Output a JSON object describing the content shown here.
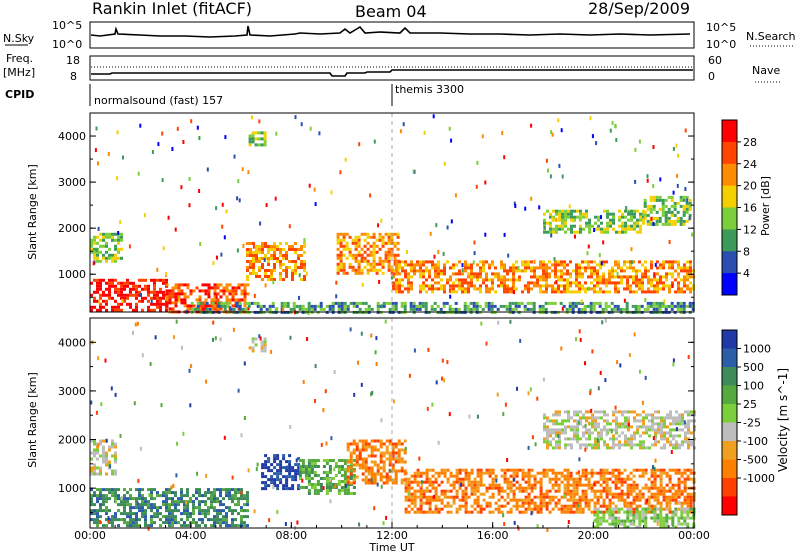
{
  "header": {
    "station": "Rankin Inlet (fitACF)",
    "beam": "Beam 04",
    "date": "28/Sep/2009"
  },
  "aux_panels": {
    "nsky_label": "N.Sky",
    "nsky_ticks": [
      "10^5",
      "10^0"
    ],
    "nsearch_label": "N.Search",
    "nsearch_ticks": [
      "10^5",
      "10^0"
    ],
    "freq_label": "Freq.",
    "freq_unit": "[MHz]",
    "freq_ticks": [
      "18",
      "8"
    ],
    "nave_label": "Nave",
    "nave_ticks": [
      "60",
      "0"
    ],
    "cpid_label": "CPID",
    "cpid_segments": [
      {
        "label": "normalsound (fast) 157",
        "start_hour": 0,
        "end_hour": 12
      },
      {
        "label": "themis 3300",
        "start_hour": 12,
        "end_hour": 24
      }
    ]
  },
  "chart_data": [
    {
      "type": "heatmap",
      "name": "power",
      "ylabel": "Slant Range [km]",
      "xlim": [
        0,
        24
      ],
      "ylim": [
        180,
        4500
      ],
      "yticks": [
        1000,
        2000,
        3000,
        4000
      ],
      "colorbar": {
        "label": "Power [dB]",
        "ticks": [
          "4",
          "8",
          "12",
          "16",
          "20",
          "24",
          "28"
        ],
        "colors": [
          "#0000ff",
          "#2a4fb0",
          "#3c9a5a",
          "#7ccf3a",
          "#f5d000",
          "#ff8c00",
          "#ff4500",
          "#ff0000"
        ]
      },
      "echo_regions": [
        {
          "t0": 0.0,
          "t1": 3.0,
          "r0": 200,
          "r1": 900,
          "level": 7
        },
        {
          "t0": 3.0,
          "t1": 6.3,
          "r0": 200,
          "r1": 800,
          "level": 6
        },
        {
          "t0": 0.0,
          "t1": 1.2,
          "r0": 1300,
          "r1": 1900,
          "level": 3
        },
        {
          "t0": 6.2,
          "t1": 8.5,
          "r0": 900,
          "r1": 1700,
          "level": 5
        },
        {
          "t0": 9.8,
          "t1": 12.2,
          "r0": 1000,
          "r1": 1900,
          "level": 5
        },
        {
          "t0": 12.0,
          "t1": 24.0,
          "r0": 600,
          "r1": 1300,
          "level": 5
        },
        {
          "t0": 18.0,
          "t1": 22.0,
          "r0": 1900,
          "r1": 2400,
          "level": 3
        },
        {
          "t0": 22.0,
          "t1": 23.8,
          "r0": 2100,
          "r1": 2700,
          "level": 3
        },
        {
          "t0": 6.3,
          "t1": 6.9,
          "r0": 3800,
          "r1": 4100,
          "level": 3
        },
        {
          "t0": 4.0,
          "t1": 24.0,
          "r0": 200,
          "r1": 400,
          "level": 2
        }
      ]
    },
    {
      "type": "heatmap",
      "name": "velocity",
      "xlabel": "Time UT",
      "ylabel": "Slant Range [km]",
      "xlim": [
        0,
        24
      ],
      "ylim": [
        180,
        4500
      ],
      "xticks": [
        "00:00",
        "04:00",
        "08:00",
        "12:00",
        "16:00",
        "20:00",
        "00:00"
      ],
      "yticks": [
        1000,
        2000,
        3000,
        4000
      ],
      "colorbar": {
        "label": "Velocity [m s^-1]",
        "ticks": [
          "1000",
          "500",
          "100",
          "25",
          "-25",
          "-100",
          "-500",
          "-1000"
        ],
        "colors": [
          "#1f3aa6",
          "#2c5ea8",
          "#3d8a5a",
          "#56a840",
          "#7ccf3a",
          "#bdbdbd",
          "#f0a020",
          "#ff8000",
          "#ff4000",
          "#ff0000"
        ]
      },
      "echo_regions": [
        {
          "t0": 0.0,
          "t1": 6.3,
          "r0": 200,
          "r1": 1000,
          "color": 2
        },
        {
          "t0": 0.0,
          "t1": 1.0,
          "r0": 1300,
          "r1": 2000,
          "color": 5
        },
        {
          "t0": 6.8,
          "t1": 8.3,
          "r0": 1000,
          "r1": 1700,
          "color": 0
        },
        {
          "t0": 8.3,
          "t1": 10.5,
          "r0": 900,
          "r1": 1600,
          "color": 3
        },
        {
          "t0": 10.2,
          "t1": 12.5,
          "r0": 1100,
          "r1": 2000,
          "color": 7
        },
        {
          "t0": 12.5,
          "t1": 24.0,
          "r0": 500,
          "r1": 1400,
          "color": 7
        },
        {
          "t0": 18.0,
          "t1": 24.0,
          "r0": 1800,
          "r1": 2600,
          "color": 5
        },
        {
          "t0": 20.0,
          "t1": 24.0,
          "r0": 200,
          "r1": 600,
          "color": 4
        },
        {
          "t0": 6.3,
          "t1": 6.9,
          "r0": 3800,
          "r1": 4100,
          "color": 5
        }
      ]
    }
  ]
}
